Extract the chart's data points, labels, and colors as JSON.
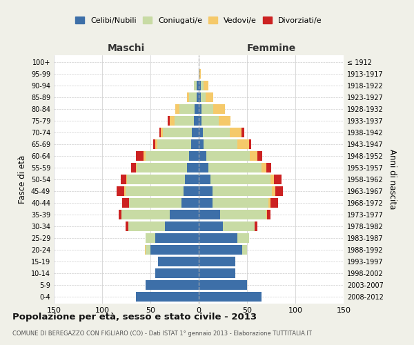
{
  "age_groups": [
    "0-4",
    "5-9",
    "10-14",
    "15-19",
    "20-24",
    "25-29",
    "30-34",
    "35-39",
    "40-44",
    "45-49",
    "50-54",
    "55-59",
    "60-64",
    "65-69",
    "70-74",
    "75-79",
    "80-84",
    "85-89",
    "90-94",
    "95-99",
    "100+"
  ],
  "birth_years": [
    "2008-2012",
    "2003-2007",
    "1998-2002",
    "1993-1997",
    "1988-1992",
    "1983-1987",
    "1978-1982",
    "1973-1977",
    "1968-1972",
    "1963-1967",
    "1958-1962",
    "1953-1957",
    "1948-1952",
    "1943-1947",
    "1938-1942",
    "1933-1937",
    "1928-1932",
    "1923-1927",
    "1918-1922",
    "1913-1917",
    "≤ 1912"
  ],
  "male_celibi": [
    65,
    55,
    45,
    42,
    50,
    45,
    35,
    30,
    18,
    16,
    14,
    12,
    10,
    8,
    7,
    5,
    4,
    2,
    2,
    0,
    0
  ],
  "male_coniugati": [
    0,
    0,
    0,
    0,
    5,
    10,
    38,
    50,
    54,
    60,
    60,
    52,
    45,
    35,
    30,
    20,
    16,
    8,
    3,
    0,
    0
  ],
  "male_vedovi": [
    0,
    0,
    0,
    0,
    1,
    0,
    0,
    0,
    0,
    1,
    1,
    1,
    2,
    2,
    2,
    5,
    4,
    2,
    0,
    0,
    0
  ],
  "male_divorziati": [
    0,
    0,
    0,
    0,
    0,
    0,
    3,
    3,
    7,
    8,
    6,
    5,
    8,
    2,
    2,
    2,
    0,
    0,
    0,
    0,
    0
  ],
  "female_celibi": [
    65,
    50,
    38,
    38,
    45,
    40,
    25,
    22,
    14,
    14,
    12,
    10,
    8,
    5,
    4,
    3,
    3,
    2,
    2,
    1,
    0
  ],
  "female_coniugati": [
    0,
    0,
    0,
    0,
    5,
    12,
    33,
    48,
    58,
    62,
    62,
    55,
    45,
    35,
    28,
    18,
    12,
    5,
    3,
    0,
    0
  ],
  "female_vedovi": [
    0,
    0,
    0,
    0,
    0,
    0,
    0,
    1,
    2,
    3,
    4,
    5,
    8,
    12,
    12,
    12,
    12,
    8,
    5,
    1,
    0
  ],
  "female_divorziati": [
    0,
    0,
    0,
    0,
    0,
    0,
    3,
    3,
    8,
    8,
    8,
    5,
    5,
    2,
    3,
    0,
    0,
    0,
    0,
    0,
    0
  ],
  "colors": {
    "celibi": "#3d6fa8",
    "coniugati": "#c8dba4",
    "vedovi": "#f5c96a",
    "divorziati": "#cc2222"
  },
  "xlim": 150,
  "title": "Popolazione per età, sesso e stato civile - 2013",
  "subtitle": "COMUNE DI BEREGAZZO CON FIGLIARO (CO) - Dati ISTAT 1° gennaio 2013 - Elaborazione TUTTITALIA.IT",
  "ylabel_left": "Fasce di età",
  "ylabel_right": "Anni di nascita",
  "header_male": "Maschi",
  "header_female": "Femmine",
  "legend_labels": [
    "Celibi/Nubili",
    "Coniugati/e",
    "Vedovi/e",
    "Divorziati/e"
  ],
  "bg_color": "#f0f0e8",
  "plot_bg_color": "#ffffff"
}
